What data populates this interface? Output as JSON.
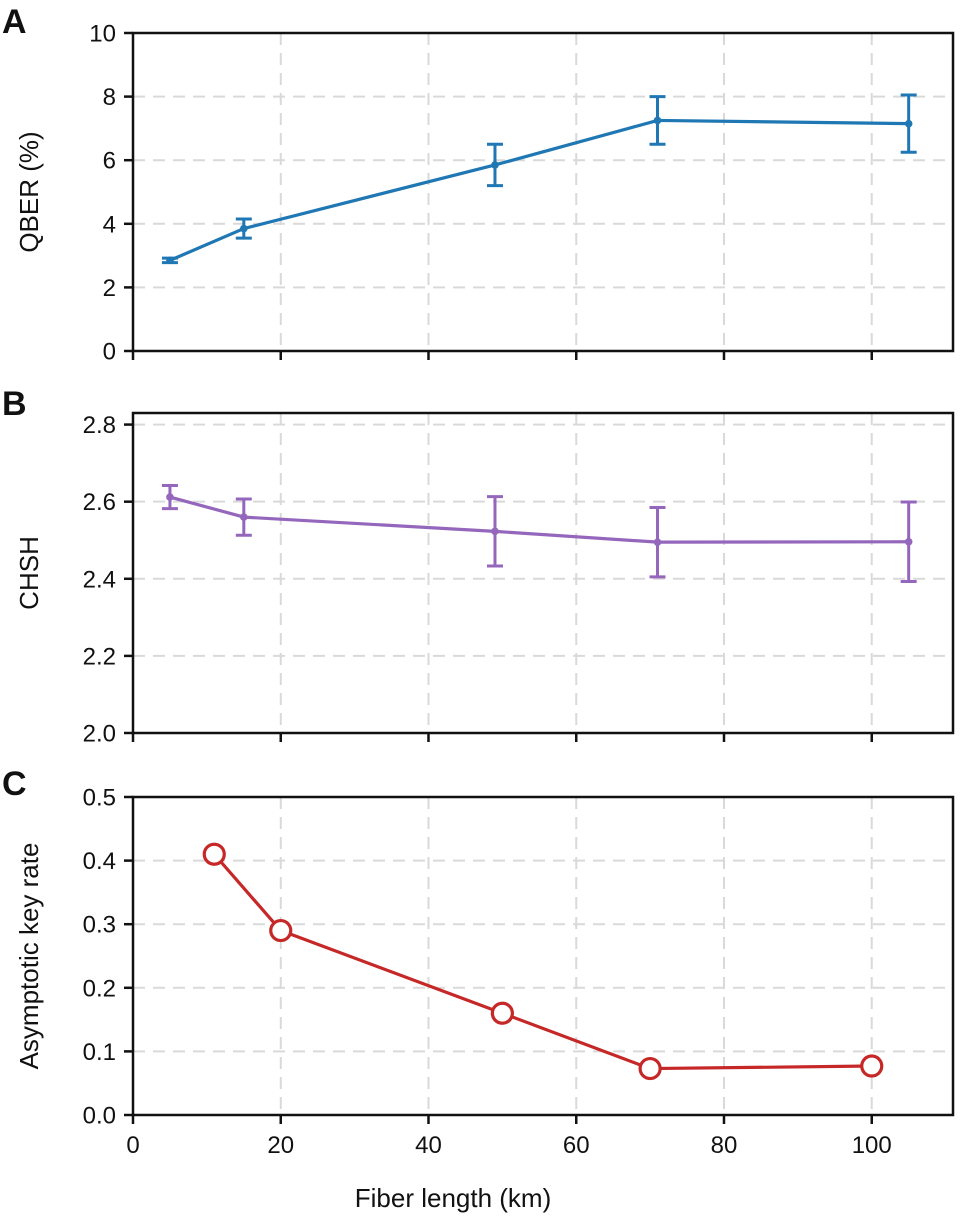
{
  "chart_data": [
    {
      "panel": "A",
      "type": "line",
      "ylabel": "QBER (%)",
      "ylim": [
        0,
        10
      ],
      "yticks": [
        0,
        2,
        4,
        6,
        8,
        10
      ],
      "ytick_labels": [
        "0",
        "2",
        "4",
        "6",
        "8",
        "10"
      ],
      "xlim": [
        0,
        111
      ],
      "xtick_positions": [
        0,
        20,
        40,
        60,
        80,
        100
      ],
      "xtick_labels_shown": false,
      "grid": true,
      "color": "#1f77b4",
      "marker": "dot",
      "x": [
        5,
        15,
        49,
        71,
        105
      ],
      "y": [
        2.85,
        3.85,
        5.85,
        7.25,
        7.15
      ],
      "yerr": [
        0.07,
        0.3,
        0.65,
        0.75,
        0.9
      ]
    },
    {
      "panel": "B",
      "type": "line",
      "ylabel": "CHSH",
      "ylim": [
        2.0,
        2.83
      ],
      "yticks": [
        2.0,
        2.2,
        2.4,
        2.6,
        2.8
      ],
      "ytick_labels": [
        "2.0",
        "2.2",
        "2.4",
        "2.6",
        "2.8"
      ],
      "xlim": [
        0,
        111
      ],
      "xtick_positions": [
        0,
        20,
        40,
        60,
        80,
        100
      ],
      "xtick_labels_shown": false,
      "grid": true,
      "color": "#9467bd",
      "marker": "dot",
      "x": [
        5,
        15,
        49,
        71,
        105
      ],
      "y": [
        2.612,
        2.56,
        2.523,
        2.495,
        2.496
      ],
      "yerr": [
        0.03,
        0.047,
        0.09,
        0.09,
        0.103
      ]
    },
    {
      "panel": "C",
      "type": "line",
      "ylabel": "Asymptotic key rate",
      "xlabel": "Fiber length (km)",
      "ylim": [
        0,
        0.5
      ],
      "yticks": [
        0,
        0.1,
        0.2,
        0.3,
        0.4,
        0.5
      ],
      "ytick_labels": [
        "0.0",
        "0.1",
        "0.2",
        "0.3",
        "0.4",
        "0.5"
      ],
      "xlim": [
        0,
        111
      ],
      "xtick_positions": [
        0,
        20,
        40,
        60,
        80,
        100
      ],
      "xtick_labels": [
        "0",
        "20",
        "40",
        "60",
        "80",
        "100"
      ],
      "xtick_labels_shown": true,
      "grid": true,
      "color": "#c62828",
      "marker": "open-circle",
      "x": [
        11,
        20,
        50,
        70,
        100
      ],
      "y": [
        0.41,
        0.29,
        0.16,
        0.073,
        0.077
      ]
    }
  ]
}
